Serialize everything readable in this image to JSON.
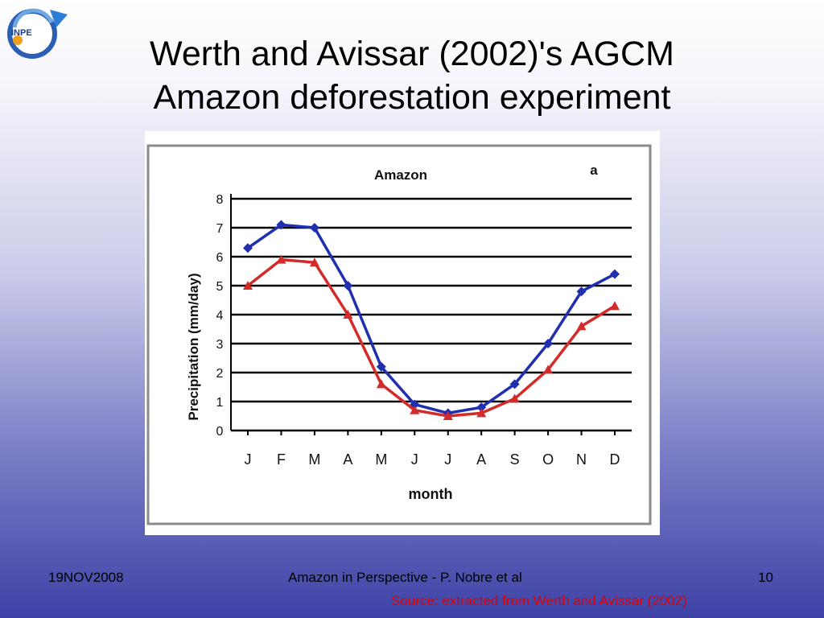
{
  "slide": {
    "title_line1": "Werth and Avissar (2002)'s AGCM",
    "title_line2": "Amazon deforestation experiment",
    "footer_date": "19NOV2008",
    "footer_center": "Amazon in Perspective - P. Nobre et al",
    "footer_page": "10",
    "source": "Source: extracted from Werth and Avissar (2002)",
    "logo_text": "INPE"
  },
  "colors": {
    "series_control": "#1f2fb0",
    "series_deforested": "#d42a2a"
  },
  "chart_data": {
    "type": "line",
    "title": "Amazon",
    "panel_label": "a",
    "xlabel": "month",
    "ylabel": "Precipitation (mm/day)",
    "ylim": [
      0,
      8
    ],
    "yticks": [
      "0",
      "1",
      "2",
      "3",
      "4",
      "5",
      "6",
      "7",
      "8"
    ],
    "categories": [
      "J",
      "F",
      "M",
      "A",
      "M",
      "J",
      "J",
      "A",
      "S",
      "O",
      "N",
      "D"
    ],
    "grid": true,
    "series": [
      {
        "values": [
          6.3,
          7.1,
          7.0,
          5.0,
          2.2,
          0.9,
          0.6,
          0.8,
          1.6,
          3.0,
          4.8,
          5.4
        ]
      },
      {
        "values": [
          5.0,
          5.9,
          5.8,
          4.0,
          1.6,
          0.7,
          0.5,
          0.6,
          1.1,
          2.1,
          3.6,
          4.3
        ]
      }
    ]
  }
}
